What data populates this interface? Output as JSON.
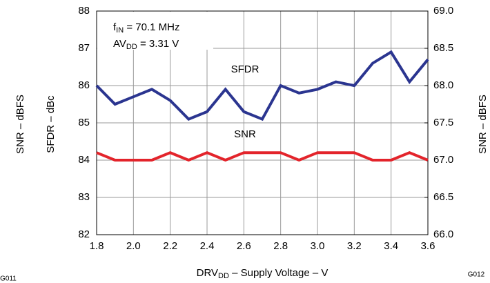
{
  "chart_data": {
    "type": "line",
    "x_label": [
      {
        "text": "DRV"
      },
      {
        "text": "DD",
        "sub": true
      },
      {
        "text": " – Supply Voltage – V"
      }
    ],
    "y_label": "SFDR – dBc",
    "y_label_outer": "SNR – dBFS",
    "y2_label": "SNR – dBFS",
    "annotations": [
      [
        {
          "text": "f"
        },
        {
          "text": "IN",
          "sub": true
        },
        {
          "text": " = 70.1 MHz"
        }
      ],
      [
        {
          "text": "AV"
        },
        {
          "text": "DD",
          "sub": true
        },
        {
          "text": " = 3.31 V"
        }
      ],
      [
        {
          "text": "SFDR"
        }
      ],
      [
        {
          "text": "SNR"
        }
      ]
    ],
    "figure_ids": [
      "G011",
      "G012"
    ],
    "x": [
      1.8,
      1.9,
      2.0,
      2.1,
      2.2,
      2.3,
      2.4,
      2.5,
      2.6,
      2.7,
      2.8,
      2.9,
      3.0,
      3.1,
      3.2,
      3.3,
      3.4,
      3.5,
      3.6
    ],
    "series": [
      {
        "name": "SFDR",
        "color": "#2b3590",
        "values": [
          86.0,
          85.5,
          85.7,
          85.9,
          85.6,
          85.1,
          85.3,
          85.9,
          85.3,
          85.1,
          86.0,
          85.8,
          85.9,
          86.1,
          86.0,
          86.6,
          86.9,
          86.1,
          86.7
        ]
      },
      {
        "name": "SNR",
        "color": "#e3242b",
        "axis": "y2",
        "values": [
          67.1,
          67.0,
          67.0,
          67.0,
          67.1,
          67.0,
          67.1,
          67.0,
          67.1,
          67.1,
          67.1,
          67.0,
          67.1,
          67.1,
          67.1,
          67.0,
          67.0,
          67.1,
          67.0
        ]
      }
    ],
    "xlim": [
      1.8,
      3.6
    ],
    "xticks": [
      1.8,
      {
        "value": 2,
        "label": "2.0"
      },
      2.2,
      2.4,
      2.6,
      2.8,
      {
        "value": 3,
        "label": "3.0"
      },
      3.2,
      3.4,
      3.6
    ],
    "ylim": [
      82,
      88
    ],
    "yticks": [
      82,
      83,
      84,
      85,
      86,
      87,
      88
    ],
    "y2lim": [
      66,
      69
    ],
    "y2ticks": [
      {
        "value": 66,
        "label": "66.0"
      },
      66.5,
      {
        "value": 67,
        "label": "67.0"
      },
      67.5,
      {
        "value": 68,
        "label": "68.0"
      },
      68.5,
      {
        "value": 69,
        "label": "69.0"
      }
    ],
    "grid": true
  }
}
